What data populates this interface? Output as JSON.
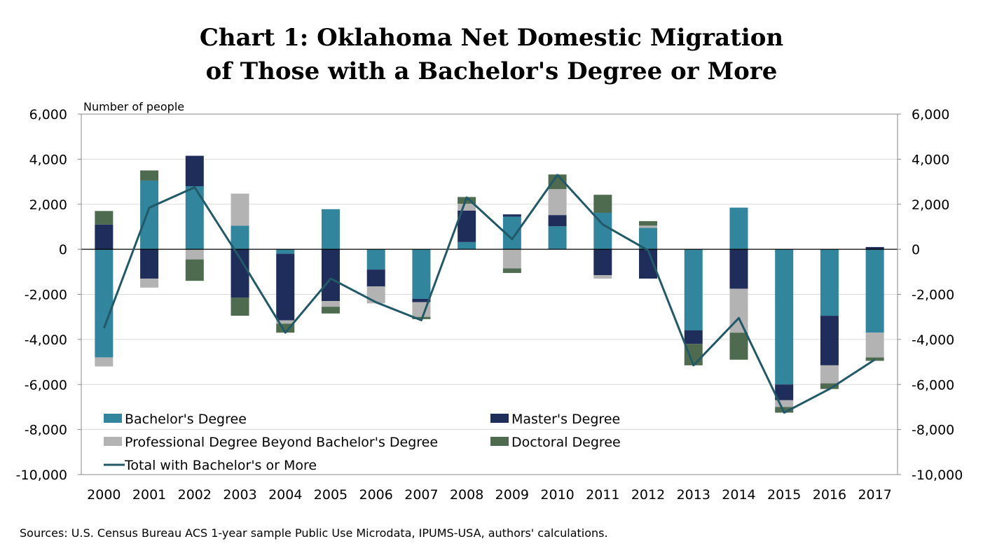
{
  "title_line1": "Chart 1: Oklahoma Net Domestic Migration",
  "title_line2": "of Those with a Bachelor's Degree or More",
  "source": "Sources: U.S. Census Bureau ACS 1-year sample Public Use Microdata, IPUMS-USA, authors' calculations.",
  "chart_data": {
    "type": "bar",
    "stacked": true,
    "title": "Chart 1: Oklahoma Net Domestic Migration of Those with a Bachelor's Degree or More",
    "ylabel": "Number of people",
    "xlabel": "",
    "ylim": [
      -10000,
      6000
    ],
    "yticks": [
      6000,
      4000,
      2000,
      0,
      -2000,
      -4000,
      -6000,
      -8000,
      -10000
    ],
    "ytick_labels": [
      "6,000",
      "4,000",
      "2,000",
      "0",
      "-2,000",
      "-4,000",
      "-6,000",
      "-8,000",
      "-10,000"
    ],
    "secondary_axis": true,
    "grid": true,
    "legend_position": "bottom-left",
    "categories": [
      "2000",
      "2001",
      "2002",
      "2003",
      "2004",
      "2005",
      "2006",
      "2007",
      "2008",
      "2009",
      "2010",
      "2011",
      "2012",
      "2013",
      "2014",
      "2015",
      "2016",
      "2017"
    ],
    "series": [
      {
        "name": "Bachelor's Degree",
        "color": "#31859c",
        "values": [
          -4800,
          3050,
          2800,
          1050,
          -200,
          1780,
          -900,
          -2200,
          320,
          1450,
          1020,
          1620,
          950,
          -3600,
          1850,
          -6000,
          -2950,
          -3700
        ]
      },
      {
        "name": "Master's Degree",
        "color": "#1f2d5a",
        "values": [
          1100,
          -1300,
          1350,
          -2150,
          -2950,
          -2300,
          -750,
          -150,
          1400,
          100,
          500,
          -1150,
          -1300,
          -600,
          -1750,
          -700,
          -2200,
          100
        ]
      },
      {
        "name": "Professional Degree Beyond Bachelor's Degree",
        "color": "#b3b3b3",
        "values": [
          -400,
          -400,
          -450,
          1420,
          -150,
          -250,
          -750,
          -650,
          300,
          -850,
          1150,
          -150,
          100,
          0,
          -1950,
          -300,
          -800,
          -1100
        ]
      },
      {
        "name": "Doctoral Degree",
        "color": "#4f6b4f",
        "values": [
          600,
          450,
          -950,
          -800,
          -400,
          -300,
          0,
          -100,
          300,
          -200,
          650,
          800,
          200,
          -950,
          -1200,
          -250,
          -250,
          -150
        ]
      }
    ],
    "line": {
      "name": "Total with Bachelor's or More",
      "color": "#215968",
      "values": [
        -3500,
        1850,
        2750,
        -400,
        -3700,
        -1300,
        -2350,
        -3150,
        2300,
        450,
        3300,
        1100,
        -50,
        -5150,
        -3050,
        -7250,
        -6200,
        -4900
      ]
    }
  }
}
